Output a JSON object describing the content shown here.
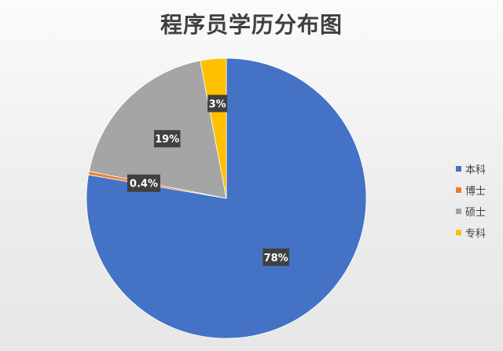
{
  "chart_data": {
    "type": "pie",
    "title": "程序员学历分布图",
    "categories": [
      "本科",
      "博士",
      "硕士",
      "专科"
    ],
    "values": [
      78,
      0.4,
      19,
      3
    ],
    "data_labels": [
      "78%",
      "0.4%",
      "19%",
      "3%"
    ],
    "colors": [
      "#4472C4",
      "#ED7D31",
      "#A5A5A5",
      "#FFC000"
    ],
    "legend_position": "right"
  }
}
